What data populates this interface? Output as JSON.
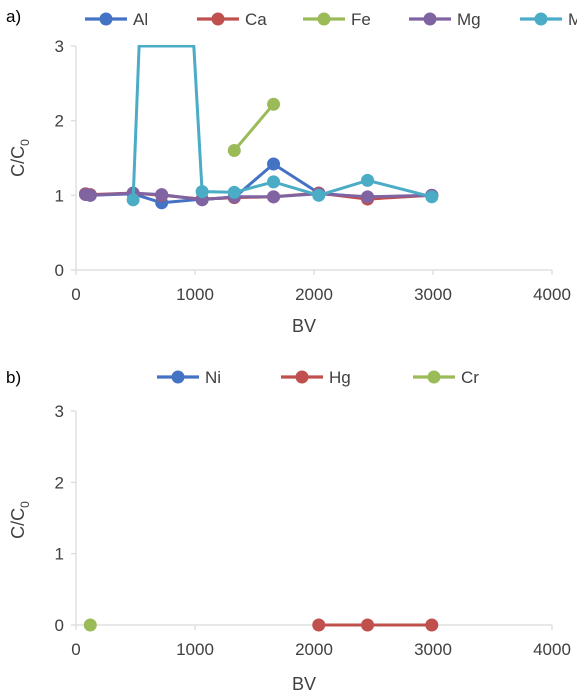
{
  "chart_data": [
    {
      "type": "line",
      "panel_label": "a)",
      "xlabel": "BV",
      "ylabel": "C/C0",
      "xlim": [
        0,
        4000
      ],
      "ylim": [
        0,
        3
      ],
      "xticks": [
        "0",
        "1000",
        "2000",
        "3000",
        "4000"
      ],
      "yticks": [
        "0",
        "1",
        "2",
        "3"
      ],
      "grid": false,
      "legend_position": "top",
      "series": [
        {
          "name": "Al",
          "color": "#4472C4",
          "points": [
            [
              80,
              1.02
            ],
            [
              120,
              1.0
            ],
            [
              480,
              1.02
            ],
            [
              720,
              0.9
            ],
            [
              1060,
              0.95
            ],
            [
              1330,
              0.97
            ],
            [
              1660,
              1.42
            ],
            [
              2040,
              1.03
            ],
            [
              2450,
              0.97
            ],
            [
              2990,
              1.0
            ]
          ]
        },
        {
          "name": "Ca",
          "color": "#C0504D",
          "points": [
            [
              80,
              1.02
            ],
            [
              120,
              1.01
            ],
            [
              480,
              1.03
            ],
            [
              720,
              1.0
            ],
            [
              1060,
              0.95
            ],
            [
              1330,
              0.97
            ],
            [
              1660,
              0.98
            ],
            [
              2040,
              1.03
            ],
            [
              2450,
              0.95
            ],
            [
              2990,
              1.0
            ]
          ]
        },
        {
          "name": "Fe",
          "color": "#9BBB59",
          "points": [
            [
              1330,
              1.6
            ],
            [
              1660,
              2.22
            ]
          ]
        },
        {
          "name": "Mg",
          "color": "#8064A2",
          "points": [
            [
              80,
              1.01
            ],
            [
              120,
              1.0
            ],
            [
              480,
              1.03
            ],
            [
              720,
              1.01
            ],
            [
              1060,
              0.94
            ],
            [
              1330,
              0.98
            ],
            [
              1660,
              0.98
            ],
            [
              2040,
              1.02
            ],
            [
              2450,
              0.98
            ],
            [
              2990,
              1.0
            ]
          ]
        },
        {
          "name": "Mn",
          "color": "#4BACC6",
          "points": [
            [
              480,
              0.94
            ],
            [
              530,
              3.0
            ],
            [
              990,
              3.0
            ],
            [
              1060,
              1.05
            ],
            [
              1330,
              1.04
            ],
            [
              1660,
              1.18
            ],
            [
              2040,
              1.0
            ],
            [
              2450,
              1.2
            ],
            [
              2990,
              0.98
            ]
          ]
        }
      ]
    },
    {
      "type": "line",
      "panel_label": "b)",
      "xlabel": "BV",
      "ylabel": "C/C0",
      "xlim": [
        0,
        4000
      ],
      "ylim": [
        0,
        3
      ],
      "xticks": [
        "0",
        "1000",
        "2000",
        "3000",
        "4000"
      ],
      "yticks": [
        "0",
        "1",
        "2",
        "3"
      ],
      "grid": false,
      "legend_position": "top",
      "series": [
        {
          "name": "Ni",
          "color": "#4472C4",
          "points": []
        },
        {
          "name": "Hg",
          "color": "#C0504D",
          "points": [
            [
              2040,
              0.0
            ],
            [
              2450,
              0.0
            ],
            [
              2990,
              0.0
            ]
          ]
        },
        {
          "name": "Cr",
          "color": "#9BBB59",
          "points": [
            [
              120,
              0.0
            ]
          ]
        }
      ]
    }
  ]
}
